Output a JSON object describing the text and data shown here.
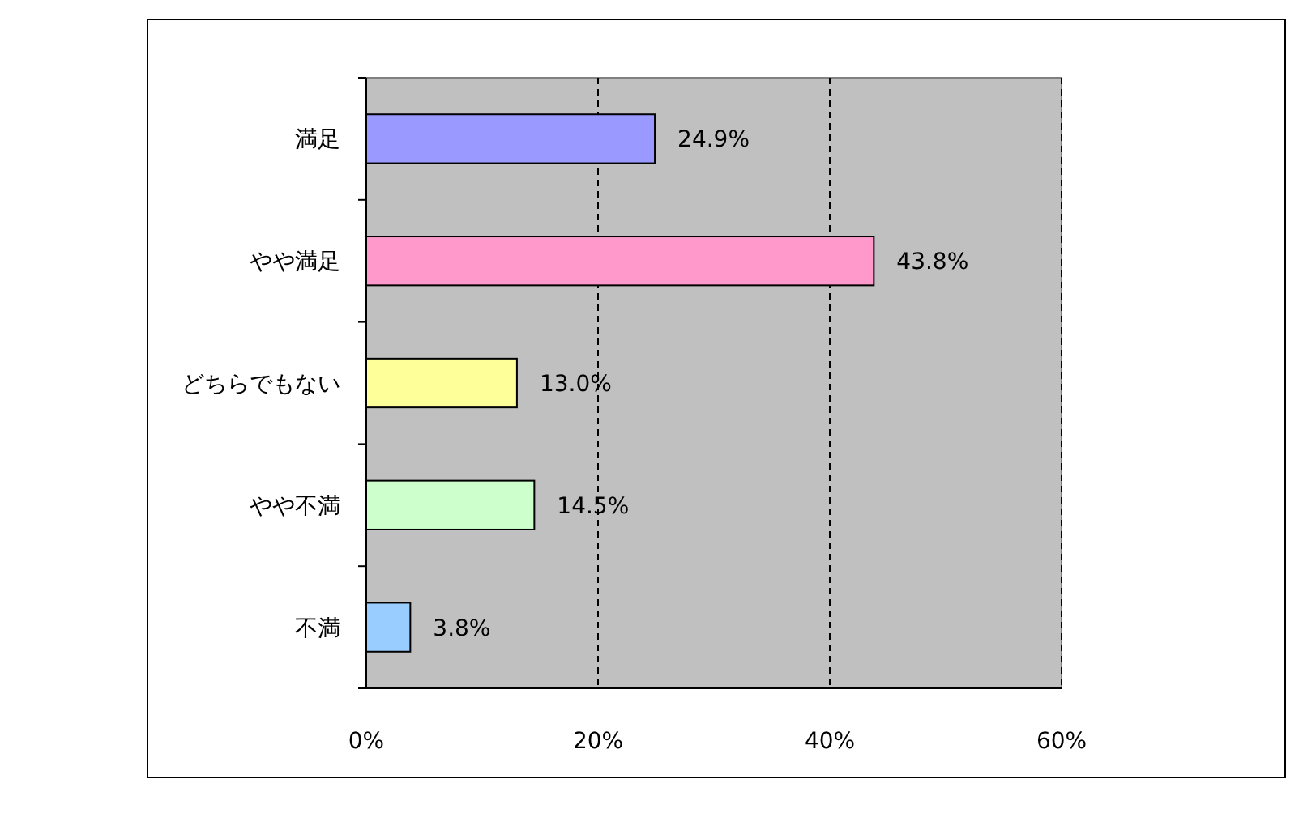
{
  "chart_data": {
    "type": "bar",
    "orientation": "horizontal",
    "categories": [
      "満足",
      "やや満足",
      "どちらでもない",
      "やや不満",
      "不満"
    ],
    "values": [
      24.9,
      43.8,
      13.0,
      14.5,
      3.8
    ],
    "colors": [
      "#9999ff",
      "#ff99cc",
      "#ffff99",
      "#ccffcc",
      "#99ccff"
    ],
    "value_labels": [
      "24.9%",
      "43.8%",
      "13.0%",
      "14.5%",
      "3.8%"
    ],
    "xlim": [
      0,
      60
    ],
    "xticks": [
      {
        "value": 0,
        "label": "0%"
      },
      {
        "value": 20,
        "label": "20%"
      },
      {
        "value": 40,
        "label": "40%"
      },
      {
        "value": 60,
        "label": "60%"
      }
    ],
    "grid": "x"
  }
}
